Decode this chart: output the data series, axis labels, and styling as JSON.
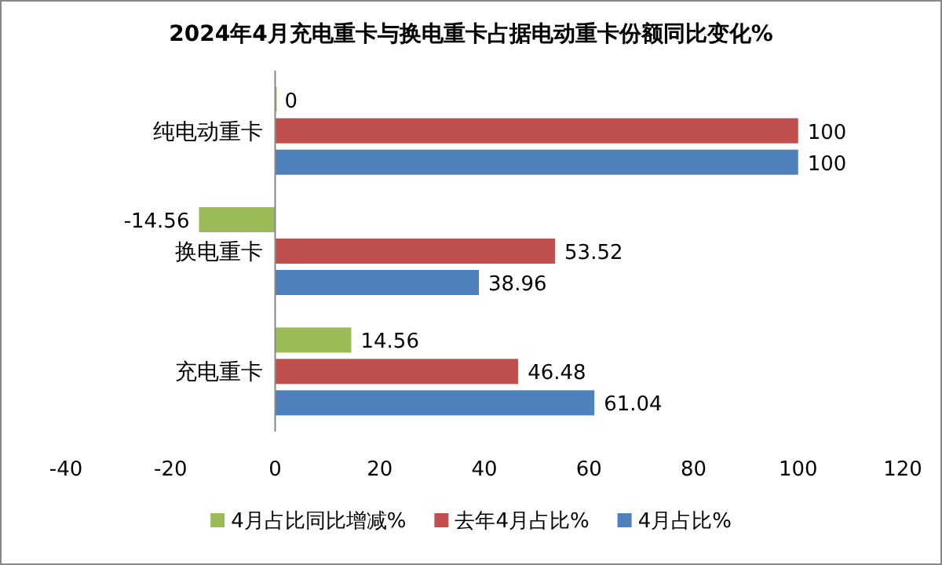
{
  "chart_data": {
    "type": "bar",
    "orientation": "horizontal",
    "title": "2024年4月充电重卡与换电重卡占据电动重卡份额同比变化%",
    "categories": [
      "纯电动重卡",
      "换电重卡",
      "充电重卡"
    ],
    "series": [
      {
        "name": "4月占比同比增减%",
        "color": "#9bbb59",
        "values": [
          0,
          -14.56,
          14.56
        ]
      },
      {
        "name": "去年4月占比%",
        "color": "#c0504d",
        "values": [
          100,
          53.52,
          46.48
        ]
      },
      {
        "name": "4月占比%",
        "color": "#4f81bd",
        "values": [
          100,
          38.96,
          61.04
        ]
      }
    ],
    "xlim": [
      -40,
      120
    ],
    "xticks": [
      -40,
      -20,
      0,
      20,
      40,
      60,
      80,
      100,
      120
    ],
    "data_labels": true,
    "legend": "bottom"
  }
}
